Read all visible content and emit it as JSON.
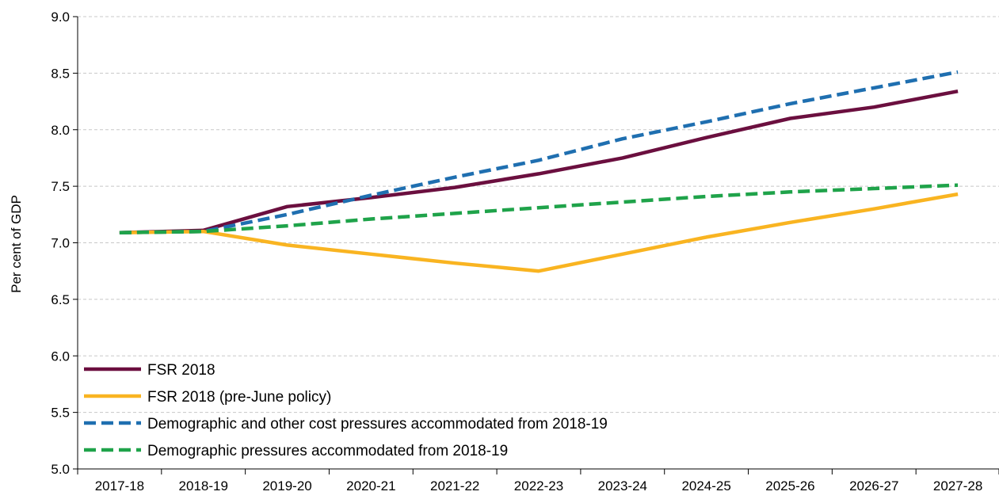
{
  "chart_data": {
    "type": "line",
    "title": "",
    "xlabel": "",
    "ylabel": "Per cent of GDP",
    "categories": [
      "2017-18",
      "2018-19",
      "2019-20",
      "2020-21",
      "2021-22",
      "2022-23",
      "2023-24",
      "2024-25",
      "2025-26",
      "2026-27",
      "2027-28"
    ],
    "ylim": [
      5.0,
      9.0
    ],
    "yticks": [
      "5.0",
      "5.5",
      "6.0",
      "6.5",
      "7.0",
      "7.5",
      "8.0",
      "8.5",
      "9.0"
    ],
    "grid": true,
    "legend_position": "bottom-left",
    "series": [
      {
        "name": "FSR 2018",
        "color": "#6b0f3f",
        "style": "solid",
        "values": [
          7.09,
          7.11,
          7.32,
          7.4,
          7.49,
          7.61,
          7.75,
          7.93,
          8.1,
          8.2,
          8.34
        ]
      },
      {
        "name": "FSR 2018 (pre-June policy)",
        "color": "#f9b421",
        "style": "solid",
        "values": [
          7.09,
          7.1,
          6.98,
          6.9,
          6.82,
          6.75,
          6.9,
          7.05,
          7.18,
          7.3,
          7.43
        ]
      },
      {
        "name": "Demographic and other cost pressures accommodated from 2018-19",
        "color": "#1f6fb0",
        "style": "dashed",
        "values": [
          7.09,
          7.1,
          7.25,
          7.42,
          7.58,
          7.73,
          7.92,
          8.07,
          8.23,
          8.37,
          8.51
        ]
      },
      {
        "name": "Demographic pressures accommodated from 2018-19",
        "color": "#1fa34a",
        "style": "dashed",
        "values": [
          7.09,
          7.1,
          7.15,
          7.21,
          7.26,
          7.31,
          7.36,
          7.41,
          7.45,
          7.48,
          7.51
        ]
      }
    ]
  }
}
